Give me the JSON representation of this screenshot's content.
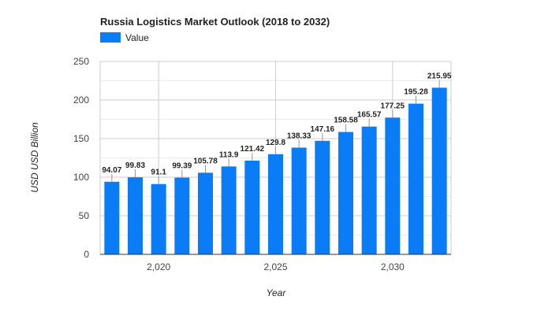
{
  "chart_data": {
    "type": "bar",
    "title": "Russia Logistics Market Outlook (2018 to 2032)",
    "xlabel": "Year",
    "ylabel": "USD USD Billion",
    "x": [
      2018,
      2019,
      2020,
      2021,
      2022,
      2023,
      2024,
      2025,
      2026,
      2027,
      2028,
      2029,
      2030,
      2031,
      2032
    ],
    "series": [
      {
        "name": "Value",
        "values": [
          94.07,
          99.83,
          91.1,
          99.39,
          105.78,
          113.9,
          121.42,
          129.8,
          138.33,
          147.16,
          158.58,
          165.57,
          177.25,
          195.28,
          215.95
        ],
        "labels": [
          "94.07",
          "99.83",
          "91.1",
          "99.39",
          "105.78",
          "113.9",
          "121.42",
          "129.8",
          "138.33",
          "147.16",
          "158.58",
          "165.57",
          "177.25",
          "195.28",
          "215.95"
        ]
      }
    ],
    "ylim": [
      0,
      250
    ],
    "yticks": [
      0,
      50,
      100,
      150,
      200,
      250
    ],
    "ytick_labels": [
      "0",
      "50",
      "100",
      "150",
      "200",
      "250"
    ],
    "xticks": [
      2020,
      2025,
      2030
    ],
    "xtick_labels": [
      "2,020",
      "2,025",
      "2,030"
    ],
    "grid": true,
    "legend_position": "top-left",
    "colors": {
      "bar": "#0a7cf5",
      "grid": "#dddddd",
      "label_leader": "#999999"
    }
  }
}
